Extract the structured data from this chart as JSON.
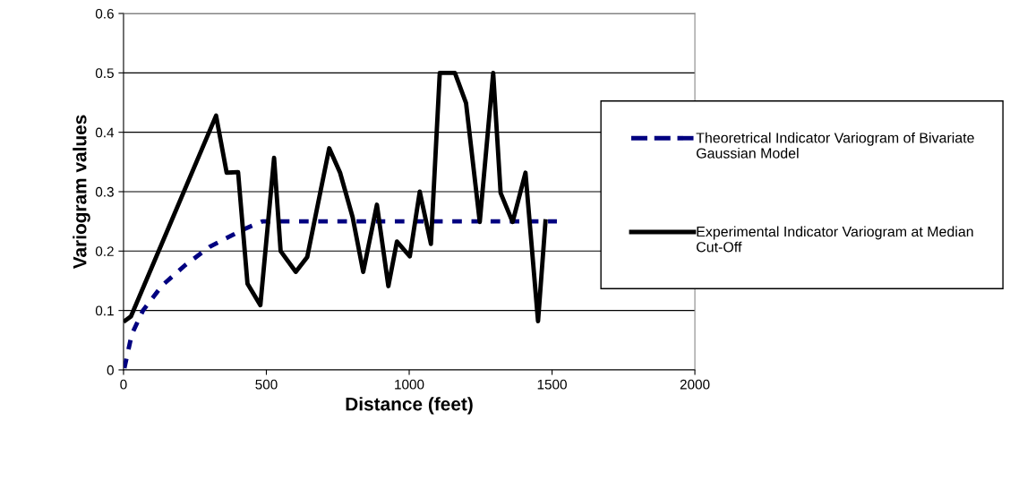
{
  "chart_data": {
    "type": "line",
    "xlabel": "Distance (feet)",
    "ylabel": "Variogram values",
    "xlim": [
      0,
      2000
    ],
    "xticks": [
      0,
      500,
      1000,
      1500,
      2000
    ],
    "ylim": [
      0,
      0.6
    ],
    "yticks": [
      0,
      0.1,
      0.2,
      0.3,
      0.4,
      0.5,
      0.6
    ],
    "grid": "y",
    "legend": "right",
    "marker": "none",
    "series": [
      {
        "name": "Theoretrical Indicator Variogram of Bivariate Gaussian Model",
        "color": "#000080",
        "line_style": "dashed",
        "x": [
          3,
          29,
          68,
          135,
          215,
          301,
          413,
          486,
          1517
        ],
        "values": [
          0.003,
          0.06,
          0.1,
          0.142,
          0.176,
          0.207,
          0.235,
          0.25,
          0.25
        ]
      },
      {
        "name": "Experimental Indicator Variogram at Median Cut-Off",
        "color": "#000000",
        "line_style": "solid",
        "x": [
          6,
          26,
          324,
          361,
          401,
          434,
          479,
          527,
          550,
          603,
          643,
          720,
          758,
          802,
          839,
          887,
          927,
          957,
          1002,
          1037,
          1076,
          1107,
          1160,
          1199,
          1247,
          1294,
          1320,
          1362,
          1407,
          1451,
          1477
        ],
        "values": [
          0.083,
          0.09,
          0.428,
          0.332,
          0.333,
          0.145,
          0.109,
          0.357,
          0.2,
          0.165,
          0.19,
          0.373,
          0.332,
          0.257,
          0.165,
          0.278,
          0.141,
          0.216,
          0.191,
          0.3,
          0.212,
          0.5,
          0.5,
          0.449,
          0.249,
          0.5,
          0.298,
          0.249,
          0.332,
          0.082,
          0.25
        ]
      }
    ]
  }
}
